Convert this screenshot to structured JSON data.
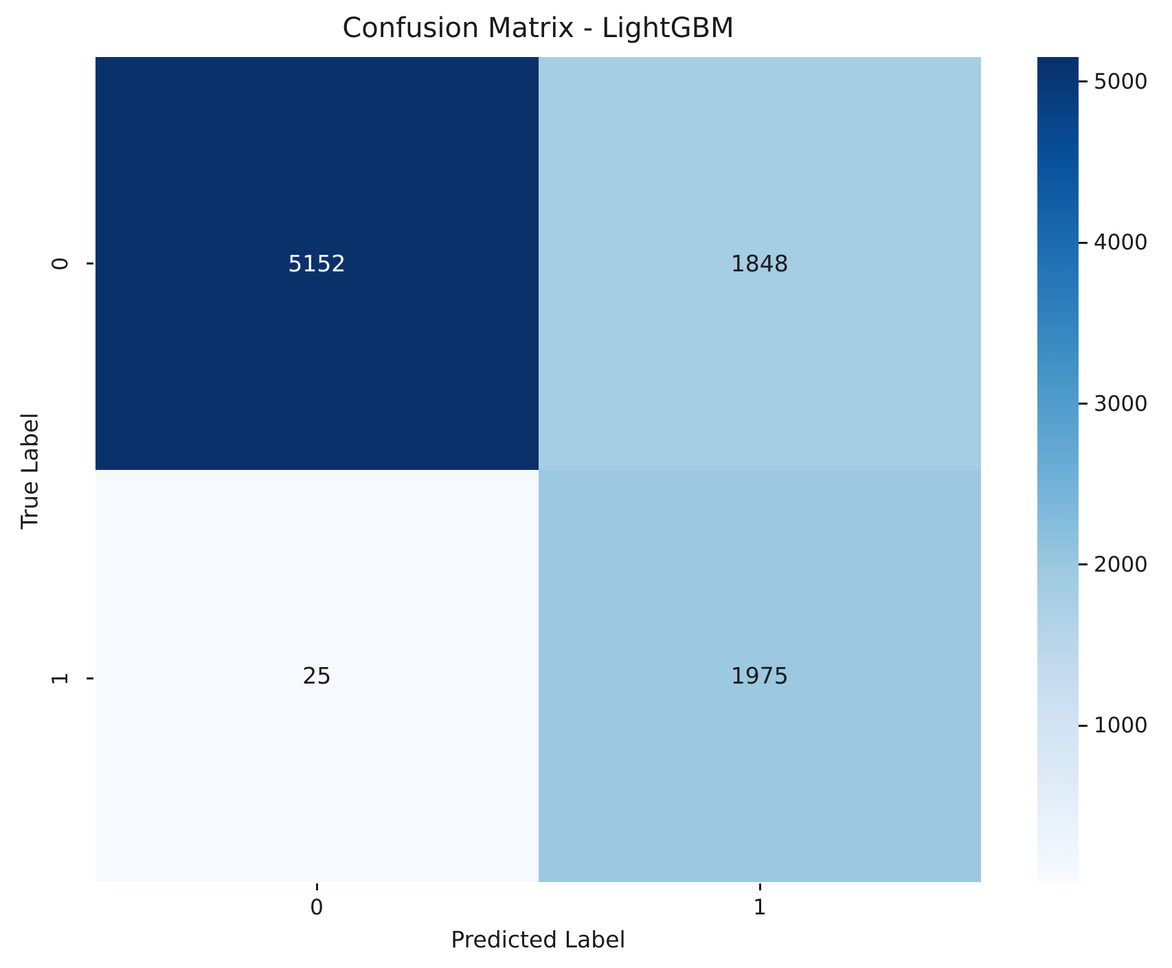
{
  "chart_data": {
    "type": "heatmap",
    "title": "Confusion Matrix - LightGBM",
    "xlabel": "Predicted Label",
    "ylabel": "True Label",
    "x_ticklabels": [
      "0",
      "1"
    ],
    "y_ticklabels": [
      "0",
      "1"
    ],
    "categories_x": [
      "0",
      "1"
    ],
    "categories_y": [
      "0",
      "1"
    ],
    "matrix": [
      [
        5152,
        1848
      ],
      [
        25,
        1975
      ]
    ],
    "colormap": "Blues",
    "vmin": 25,
    "vmax": 5152,
    "cells": [
      {
        "row": 0,
        "col": 0,
        "value": "5152",
        "bg": "#0b316b",
        "fg": "#ffffff"
      },
      {
        "row": 0,
        "col": 1,
        "value": "1848",
        "bg": "#a5cde3",
        "fg": "#1a1a1a"
      },
      {
        "row": 1,
        "col": 0,
        "value": "25",
        "bg": "#f6fafe",
        "fg": "#1a1a1a"
      },
      {
        "row": 1,
        "col": 1,
        "value": "1975",
        "bg": "#9cc9e1",
        "fg": "#1a1a1a"
      }
    ],
    "colorbar": {
      "tick_values": [
        5000,
        4000,
        3000,
        2000,
        1000
      ],
      "tick_labels": [
        "5000",
        "4000",
        "3000",
        "2000",
        "1000"
      ],
      "gradient_low_to_high": [
        "#f7fbff",
        "#deebf7",
        "#c6dbef",
        "#9ecae1",
        "#6baed6",
        "#4292c6",
        "#2171b5",
        "#08519c",
        "#08306b"
      ],
      "legend_position": "right"
    },
    "grid": false
  }
}
